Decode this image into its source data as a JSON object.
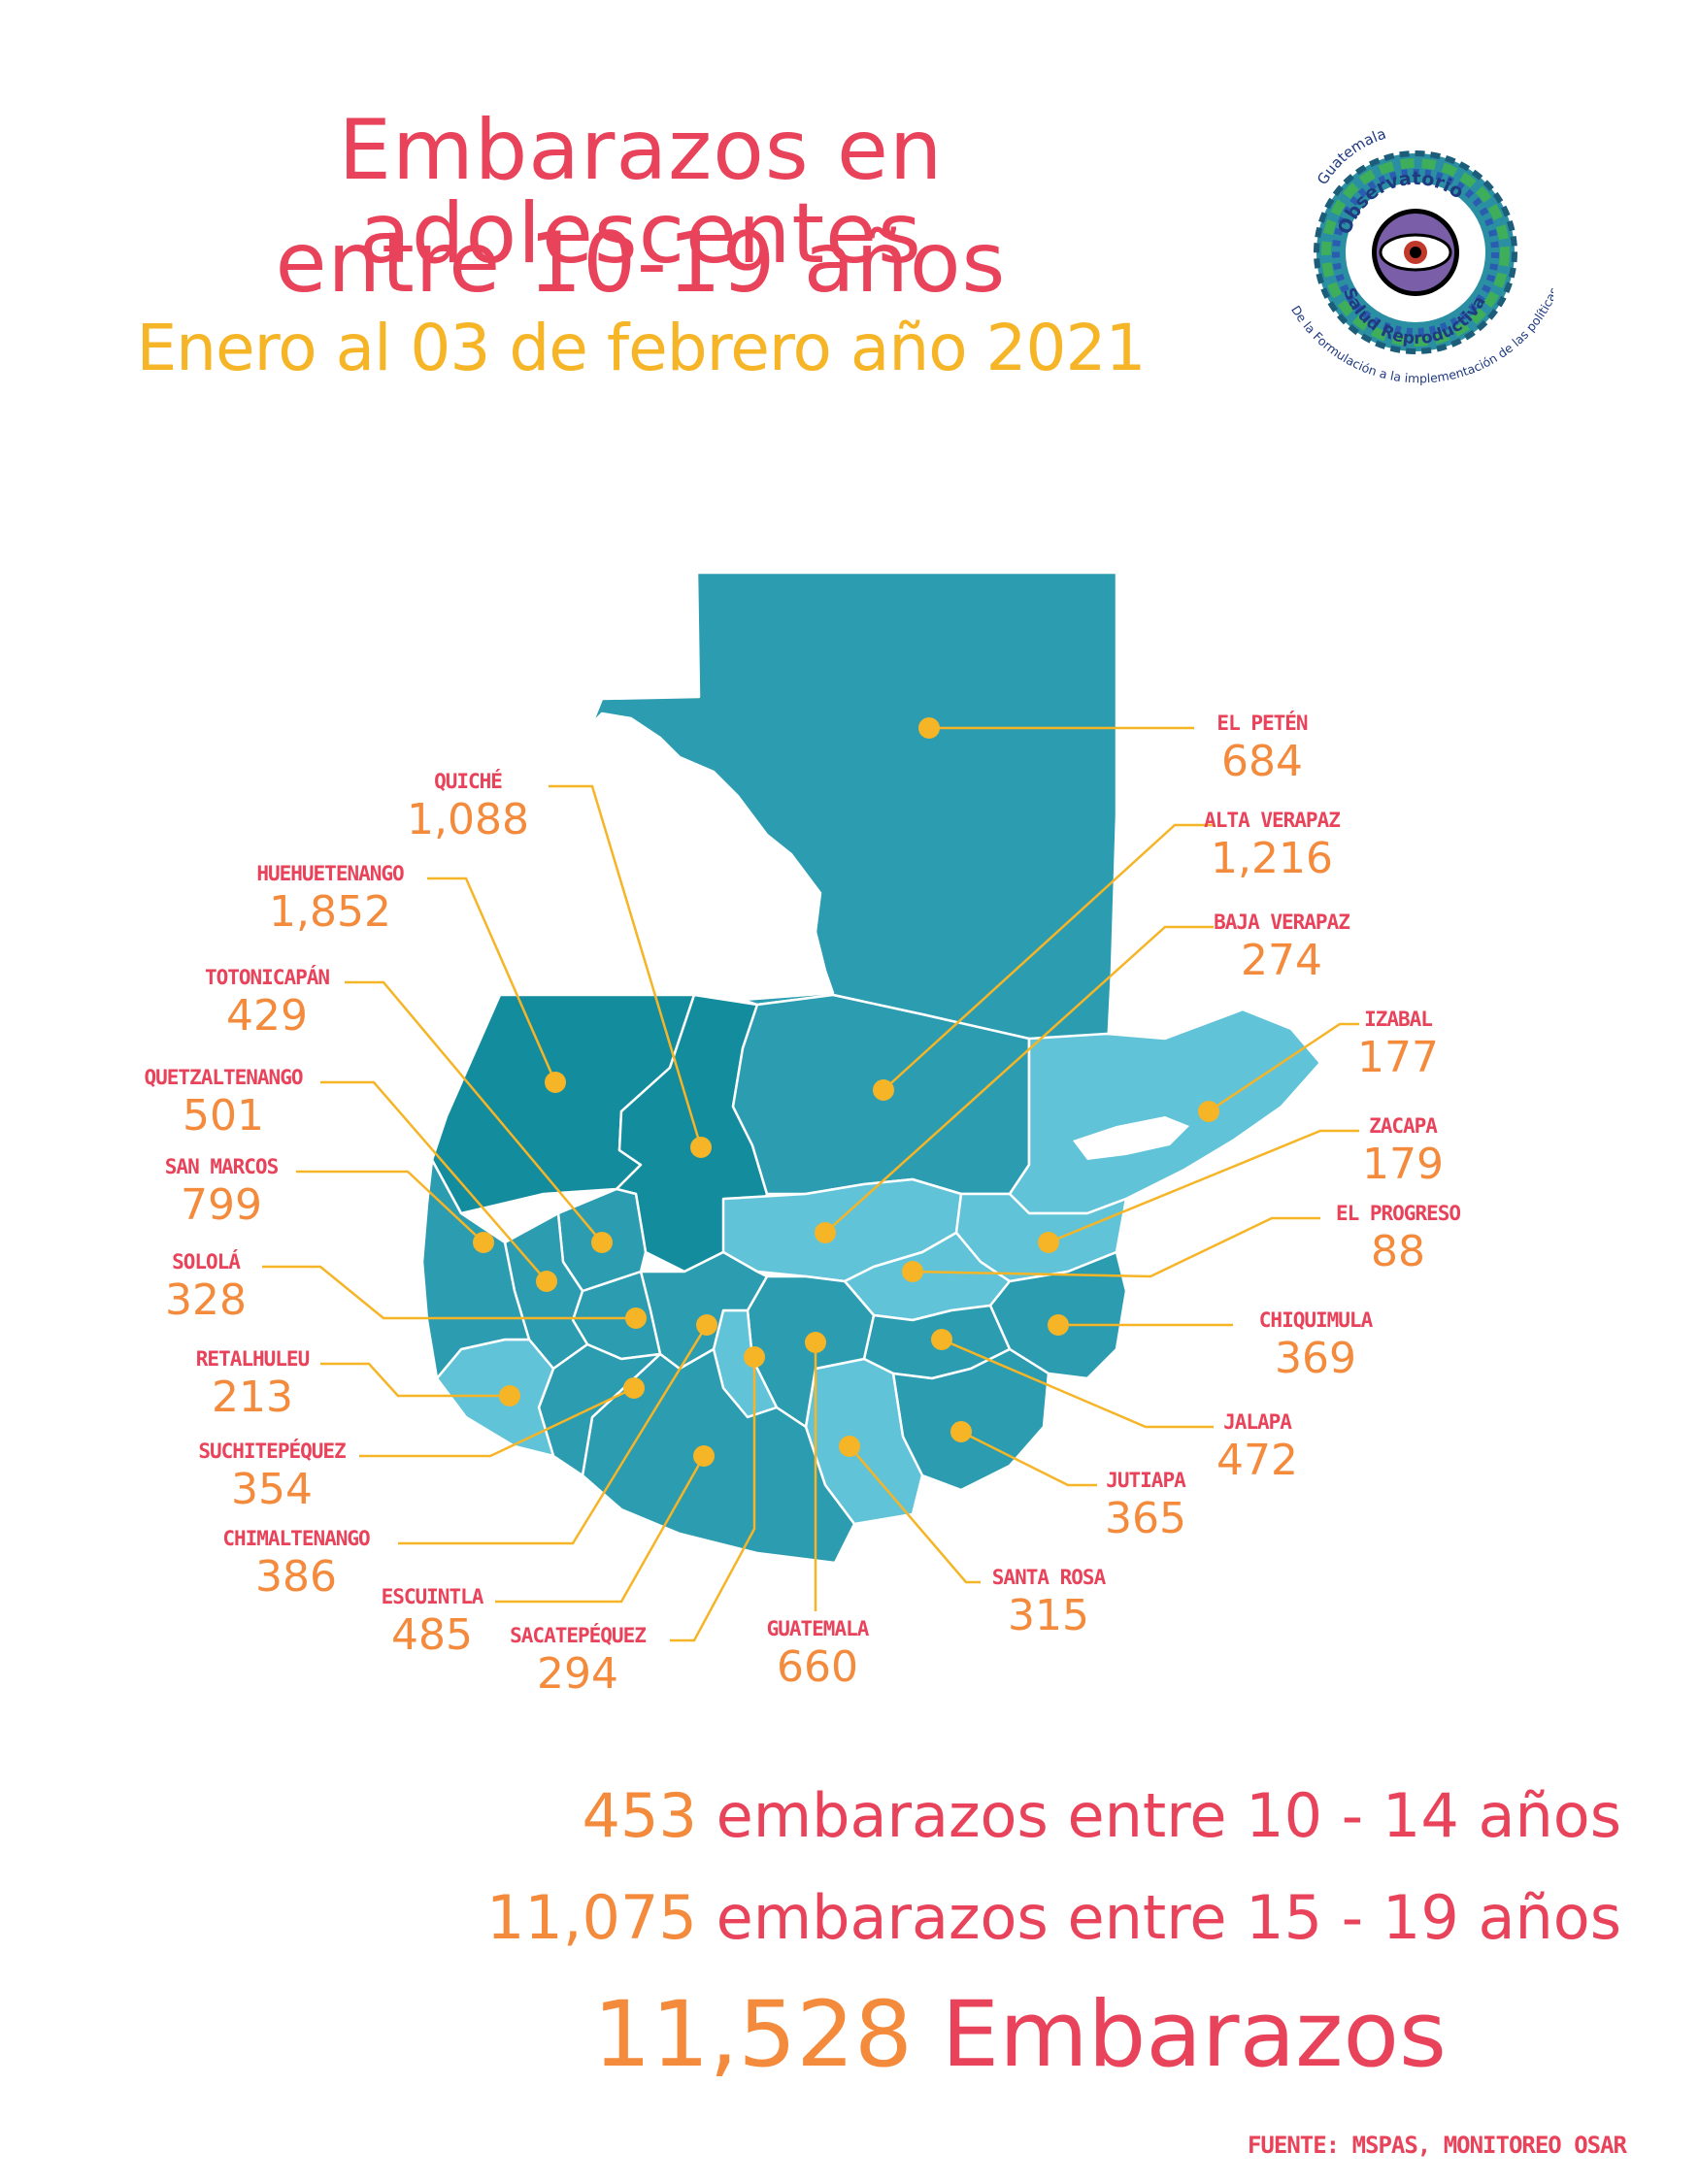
{
  "header": {
    "title_line1": "Embarazos en adolescentes",
    "title_line2": "entre 10-19 años",
    "subtitle": "Enero al 03 de febrero año 2021"
  },
  "logo": {
    "country": "Guatemala",
    "name_top": "Observatorio",
    "name_bottom": "Salud Reproductiva",
    "tagline": "De la Formulación a la implementación de las políticas públicas"
  },
  "colors": {
    "accent_pink": "#e8435a",
    "accent_orange": "#f38a3c",
    "accent_yellow": "#f6b427",
    "map_dark": "#138c9e",
    "map_mid": "#2c9cb0",
    "map_light": "#61c3d8"
  },
  "departments": [
    {
      "name": "EL PETÉN",
      "value": "684"
    },
    {
      "name": "ALTA VERAPAZ",
      "value": "1,216"
    },
    {
      "name": "BAJA VERAPAZ",
      "value": "274"
    },
    {
      "name": "IZABAL",
      "value": "177"
    },
    {
      "name": "ZACAPA",
      "value": "179"
    },
    {
      "name": "EL PROGRESO",
      "value": "88"
    },
    {
      "name": "CHIQUIMULA",
      "value": "369"
    },
    {
      "name": "JALAPA",
      "value": "472"
    },
    {
      "name": "JUTIAPA",
      "value": "365"
    },
    {
      "name": "SANTA ROSA",
      "value": "315"
    },
    {
      "name": "GUATEMALA",
      "value": "660"
    },
    {
      "name": "SACATEPÉQUEZ",
      "value": "294"
    },
    {
      "name": "ESCUINTLA",
      "value": "485"
    },
    {
      "name": "CHIMALTENANGO",
      "value": "386"
    },
    {
      "name": "SUCHITEPÉQUEZ",
      "value": "354"
    },
    {
      "name": "RETALHULEU",
      "value": "213"
    },
    {
      "name": "SOLOLÁ",
      "value": "328"
    },
    {
      "name": "SAN MARCOS",
      "value": "799"
    },
    {
      "name": "QUETZALTENANGO",
      "value": "501"
    },
    {
      "name": "TOTONICAPÁN",
      "value": "429"
    },
    {
      "name": "HUEHUETENANGO",
      "value": "1,852"
    },
    {
      "name": "QUICHÉ",
      "value": "1,088"
    }
  ],
  "summary": {
    "line1_num": "453",
    "line1_text": " embarazos entre 10 - 14 años",
    "line2_num": "11,075",
    "line2_text": " embarazos entre 15 - 19 años",
    "total_num": "11,528",
    "total_text": " Embarazos"
  },
  "source": "FUENTE: MSPAS, MONITOREO OSAR"
}
